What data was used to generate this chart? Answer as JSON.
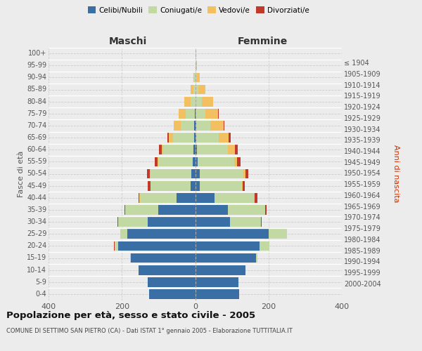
{
  "age_groups": [
    "0-4",
    "5-9",
    "10-14",
    "15-19",
    "20-24",
    "25-29",
    "30-34",
    "35-39",
    "40-44",
    "45-49",
    "50-54",
    "55-59",
    "60-64",
    "65-69",
    "70-74",
    "75-79",
    "80-84",
    "85-89",
    "90-94",
    "95-99",
    "100+"
  ],
  "birth_years": [
    "2000-2004",
    "1995-1999",
    "1990-1994",
    "1985-1989",
    "1980-1984",
    "1975-1979",
    "1970-1974",
    "1965-1969",
    "1960-1964",
    "1955-1959",
    "1950-1954",
    "1945-1949",
    "1940-1944",
    "1935-1939",
    "1930-1934",
    "1925-1929",
    "1920-1924",
    "1915-1919",
    "1910-1914",
    "1905-1909",
    "≤ 1904"
  ],
  "males": {
    "celibi": [
      125,
      130,
      155,
      175,
      210,
      185,
      130,
      100,
      50,
      12,
      10,
      6,
      5,
      2,
      2,
      1,
      0,
      0,
      0,
      0,
      0
    ],
    "coniugati": [
      0,
      0,
      0,
      2,
      10,
      20,
      80,
      90,
      100,
      110,
      112,
      95,
      82,
      58,
      38,
      25,
      12,
      5,
      2,
      0,
      0
    ],
    "vedovi": [
      0,
      0,
      0,
      0,
      0,
      0,
      0,
      0,
      2,
      0,
      2,
      2,
      4,
      12,
      18,
      20,
      18,
      8,
      2,
      0,
      0
    ],
    "divorziati": [
      0,
      0,
      0,
      0,
      2,
      0,
      2,
      3,
      3,
      8,
      8,
      8,
      8,
      4,
      0,
      0,
      0,
      0,
      0,
      0,
      0
    ]
  },
  "females": {
    "nubili": [
      120,
      118,
      138,
      165,
      175,
      200,
      95,
      90,
      52,
      13,
      12,
      7,
      5,
      2,
      2,
      0,
      0,
      0,
      0,
      0,
      0
    ],
    "coniugate": [
      0,
      0,
      0,
      5,
      28,
      50,
      85,
      100,
      108,
      115,
      120,
      100,
      85,
      62,
      40,
      28,
      18,
      8,
      5,
      2,
      0
    ],
    "vedove": [
      0,
      0,
      0,
      0,
      0,
      0,
      0,
      0,
      2,
      2,
      5,
      8,
      18,
      28,
      35,
      35,
      30,
      20,
      8,
      2,
      0
    ],
    "divorziate": [
      0,
      0,
      0,
      0,
      0,
      0,
      2,
      5,
      8,
      6,
      8,
      8,
      8,
      5,
      2,
      2,
      0,
      0,
      0,
      0,
      0
    ]
  },
  "colors": {
    "celibi": "#3a6fa5",
    "coniugati": "#c3d9a4",
    "vedovi": "#f2c060",
    "divorziati": "#c0392b"
  },
  "xlim": 400,
  "title": "Popolazione per età, sesso e stato civile - 2005",
  "subtitle": "COMUNE DI SETTIMO SAN PIETRO (CA) - Dati ISTAT 1° gennaio 2005 - Elaborazione TUTTITALIA.IT",
  "ylabel_left": "Fasce di età",
  "ylabel_right": "Anni di nascita",
  "xlabel_left": "Maschi",
  "xlabel_right": "Femmine",
  "bg_color": "#ececec",
  "xticks": [
    -400,
    -200,
    0,
    200,
    400
  ]
}
